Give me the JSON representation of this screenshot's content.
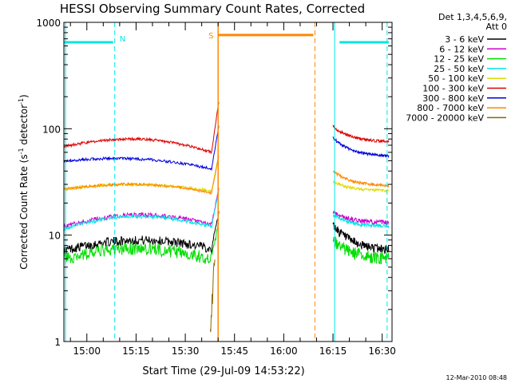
{
  "chart_data": {
    "type": "line",
    "title": "HESSI Observing Summary Count Rates, Corrected",
    "xlabel": "Start Time (29-Jul-09 14:53:22)",
    "ylabel": "Corrected Count Rate (s",
    "ylabel_sup1": "-1",
    "ylabel_mid": " detector",
    "ylabel_sup2": "-1",
    "ylabel_end": ")",
    "yscale": "log",
    "ylim": [
      1,
      1000
    ],
    "xlim_minutes": [
      893,
      993
    ],
    "x_ticks": [
      {
        "m": 900,
        "label": "15:00"
      },
      {
        "m": 915,
        "label": "15:15"
      },
      {
        "m": 930,
        "label": "15:30"
      },
      {
        "m": 945,
        "label": "15:45"
      },
      {
        "m": 960,
        "label": "16:00"
      },
      {
        "m": 975,
        "label": "16:15"
      },
      {
        "m": 990,
        "label": "16:30"
      }
    ],
    "y_ticks": [
      {
        "v": 1,
        "label": "1"
      },
      {
        "v": 10,
        "label": "10"
      },
      {
        "v": 100,
        "label": "100"
      },
      {
        "v": 1000,
        "label": "1000"
      }
    ],
    "legend": {
      "title_lines": [
        "Det 1,3,4,5,6,9,",
        "Att 0"
      ],
      "placement": "right"
    },
    "series": [
      {
        "name": "3 - 6 keV",
        "color": "#000000",
        "noise": 0.1,
        "pre": {
          "start": 7.2,
          "bump": 9.0,
          "end": 7.5
        },
        "post": {
          "start": 12.5,
          "end": 7.2
        }
      },
      {
        "name": "6 - 12 keV",
        "color": "#cc00cc",
        "noise": 0.05,
        "pre": {
          "start": 12.0,
          "bump": 15.5,
          "end": 12.5
        },
        "post": {
          "start": 16.5,
          "end": 13.0
        }
      },
      {
        "name": "12 - 25 keV",
        "color": "#00dd00",
        "noise": 0.14,
        "pre": {
          "start": 6.0,
          "bump": 7.5,
          "end": 6.0
        },
        "post": {
          "start": 9.0,
          "end": 6.0
        }
      },
      {
        "name": "25 - 50 keV",
        "color": "#00e5e5",
        "noise": 0.04,
        "pre": {
          "start": 11.5,
          "bump": 15.0,
          "end": 12.0
        },
        "post": {
          "start": 15.5,
          "end": 12.0
        }
      },
      {
        "name": "50 - 100 keV",
        "color": "#dddd00",
        "noise": 0.03,
        "pre": {
          "start": 27.0,
          "bump": 30.0,
          "end": 26.0
        },
        "post": {
          "start": 32.0,
          "end": 26.0
        }
      },
      {
        "name": "100 - 300 keV",
        "color": "#dd0000",
        "noise": 0.03,
        "pre": {
          "start": 68.0,
          "bump": 80.0,
          "end": 60.0
        },
        "post": {
          "start": 105.0,
          "end": 75.0
        }
      },
      {
        "name": "300 - 800 keV",
        "color": "#0000dd",
        "noise": 0.03,
        "pre": {
          "start": 50.0,
          "bump": 52.0,
          "end": 42.0
        },
        "post": {
          "start": 82.0,
          "end": 55.0
        }
      },
      {
        "name": "800 - 7000 keV",
        "color": "#ff8800",
        "noise": 0.03,
        "pre": {
          "start": 27.0,
          "bump": 30.0,
          "end": 25.0
        },
        "post": {
          "start": 40.0,
          "end": 29.0
        }
      },
      {
        "name": "7000 - 20000 keV",
        "color": "#886600",
        "noise": 0.0,
        "pre": null,
        "post": null
      }
    ],
    "segments": {
      "pre_minutes": [
        893,
        938
      ],
      "post_minutes": [
        975,
        992
      ]
    },
    "annotations": {
      "N": {
        "label": "N",
        "color": "#00e5e5",
        "bar_y": 650,
        "bars": [
          [
            893,
            908
          ],
          [
            977,
            992
          ]
        ],
        "dashed_at": [
          908.5,
          991.5
        ],
        "solid_at": [
          893.5,
          975.5
        ]
      },
      "S": {
        "label": "S",
        "color": "#ff8800",
        "bar_y": 760,
        "bars": [
          [
            940,
            969
          ]
        ],
        "solid_at": [
          940.0
        ],
        "dashed_at": [
          969.5
        ]
      }
    }
  },
  "footer": {
    "timestamp": "12-Mar-2010 08:48"
  }
}
